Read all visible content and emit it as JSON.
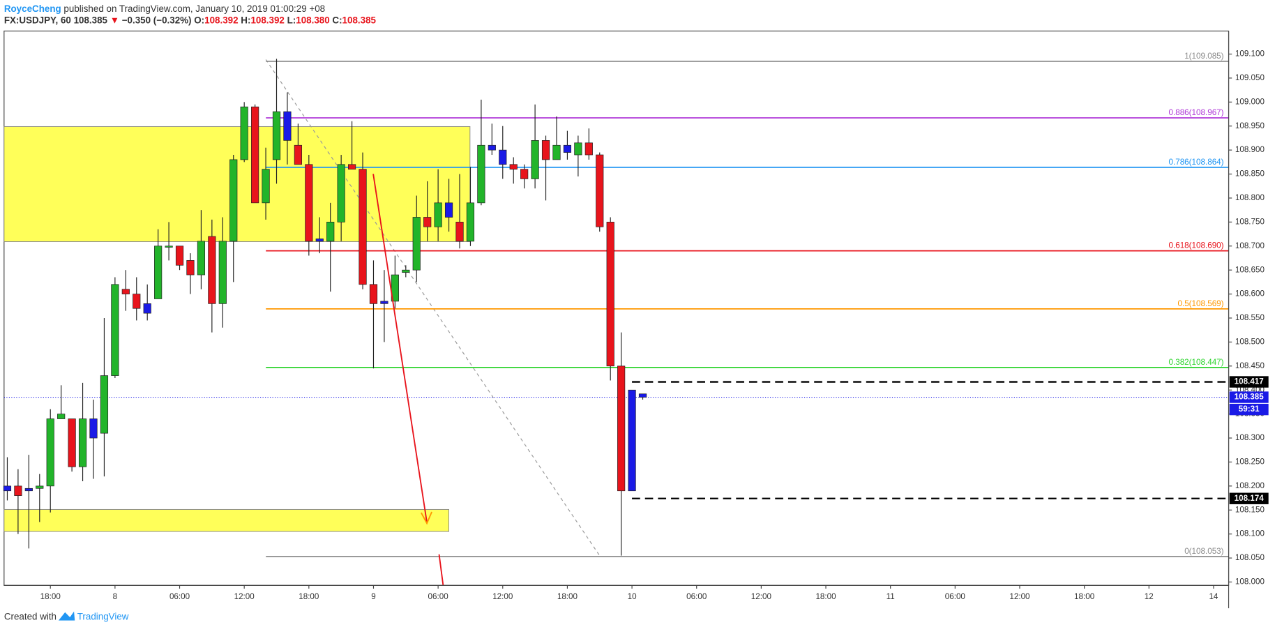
{
  "chart_data": {
    "type": "candlestick",
    "header": {
      "author": "RoyceCheng",
      "published": "published on TradingView.com, January 10, 2019 01:00:29 +08",
      "symbol": "FX:USDJPY, 60",
      "last": "108.385",
      "direction": "▼",
      "change": "−0.350 (−0.32%)",
      "open_label": "O:",
      "open": "108.392",
      "high_label": "H:",
      "high": "108.392",
      "low_label": "L:",
      "low": "108.380",
      "close_label": "C:",
      "close": "108.385"
    },
    "footer": {
      "text": "Created with",
      "brand": "TradingView"
    },
    "x": [
      14,
      15,
      16,
      17,
      18,
      19,
      20,
      21,
      22,
      23,
      24,
      25,
      26,
      27,
      28,
      29,
      30,
      31,
      32,
      33,
      34,
      35,
      36,
      37,
      38,
      39,
      40,
      41,
      42,
      43,
      44,
      45,
      46,
      47,
      48,
      49,
      50,
      51,
      52,
      53,
      54,
      55,
      56,
      57,
      58,
      59,
      60,
      61,
      62,
      63,
      64,
      65,
      66,
      67,
      68,
      69,
      70,
      71,
      72,
      73
    ],
    "open": [
      108.2,
      108.2,
      108.19,
      108.195,
      108.2,
      108.34,
      108.34,
      108.24,
      108.34,
      108.31,
      108.43,
      108.61,
      108.6,
      108.58,
      108.59,
      108.7,
      108.7,
      108.67,
      108.64,
      108.72,
      108.58,
      108.71,
      108.88,
      108.99,
      108.79,
      108.88,
      108.98,
      108.91,
      108.87,
      108.715,
      108.71,
      108.75,
      108.87,
      108.86,
      108.62,
      108.58,
      108.585,
      108.645,
      108.65,
      108.76,
      108.74,
      108.79,
      108.75,
      108.71,
      108.79,
      108.91,
      108.9,
      108.87,
      108.86,
      108.84,
      108.92,
      108.88,
      108.91,
      108.89,
      108.915,
      108.89,
      108.75,
      108.45,
      108.19,
      108.392
    ],
    "high": [
      108.26,
      108.235,
      108.265,
      108.225,
      108.36,
      108.41,
      108.34,
      108.415,
      108.38,
      108.55,
      108.635,
      108.65,
      108.635,
      108.62,
      108.735,
      108.75,
      108.7,
      108.685,
      108.775,
      108.755,
      108.76,
      108.89,
      109.0,
      108.995,
      108.905,
      109.09,
      109.02,
      108.955,
      108.89,
      108.76,
      108.79,
      108.89,
      108.96,
      108.895,
      108.67,
      108.65,
      108.68,
      108.66,
      108.805,
      108.835,
      108.86,
      108.84,
      108.85,
      108.865,
      109.005,
      108.955,
      108.95,
      108.885,
      108.87,
      108.995,
      108.93,
      108.97,
      108.94,
      108.93,
      108.945,
      108.895,
      108.76,
      108.52,
      108.4,
      108.392
    ],
    "low": [
      108.17,
      108.1,
      108.07,
      108.125,
      108.145,
      108.34,
      108.23,
      108.21,
      108.215,
      108.22,
      108.425,
      108.565,
      108.545,
      108.545,
      108.59,
      108.67,
      108.65,
      108.6,
      108.61,
      108.52,
      108.53,
      108.625,
      108.875,
      108.79,
      108.755,
      108.83,
      108.87,
      108.87,
      108.68,
      108.685,
      108.605,
      108.71,
      108.86,
      108.61,
      108.445,
      108.5,
      108.57,
      108.635,
      108.625,
      108.71,
      108.71,
      108.73,
      108.695,
      108.7,
      108.785,
      108.89,
      108.84,
      108.83,
      108.82,
      108.82,
      108.795,
      108.88,
      108.88,
      108.845,
      108.88,
      108.73,
      108.42,
      108.055,
      108.19,
      108.38
    ],
    "close": [
      108.19,
      108.18,
      108.195,
      108.2,
      108.34,
      108.35,
      108.24,
      108.34,
      108.3,
      108.43,
      108.62,
      108.6,
      108.57,
      108.56,
      108.7,
      108.7,
      108.66,
      108.64,
      108.71,
      108.58,
      108.71,
      108.88,
      108.99,
      108.79,
      108.86,
      108.98,
      108.92,
      108.87,
      108.71,
      108.71,
      108.75,
      108.87,
      108.86,
      108.62,
      108.58,
      108.585,
      108.64,
      108.65,
      108.76,
      108.74,
      108.79,
      108.76,
      108.71,
      108.79,
      108.91,
      108.9,
      108.87,
      108.86,
      108.84,
      108.92,
      108.88,
      108.91,
      108.895,
      108.915,
      108.89,
      108.74,
      108.45,
      108.19,
      108.4,
      108.385
    ],
    "colors": [
      "#1a1ae6",
      "#e8141c",
      "#1a1ae6",
      "#22b42a",
      "#22b42a",
      "#22b42a",
      "#e8141c",
      "#22b42a",
      "#1a1ae6",
      "#22b42a",
      "#22b42a",
      "#e8141c",
      "#e8141c",
      "#1a1ae6",
      "#22b42a",
      "#22b42a",
      "#e8141c",
      "#e8141c",
      "#22b42a",
      "#e8141c",
      "#22b42a",
      "#22b42a",
      "#22b42a",
      "#e8141c",
      "#22b42a",
      "#22b42a",
      "#1a1ae6",
      "#e8141c",
      "#e8141c",
      "#1a1ae6",
      "#22b42a",
      "#22b42a",
      "#e8141c",
      "#e8141c",
      "#e8141c",
      "#1a1ae6",
      "#22b42a",
      "#22b42a",
      "#22b42a",
      "#e8141c",
      "#22b42a",
      "#1a1ae6",
      "#e8141c",
      "#22b42a",
      "#22b42a",
      "#1a1ae6",
      "#1a1ae6",
      "#e8141c",
      "#e8141c",
      "#22b42a",
      "#e8141c",
      "#22b42a",
      "#1a1ae6",
      "#22b42a",
      "#e8141c",
      "#e8141c",
      "#e8141c",
      "#e8141c",
      "#1a1ae6",
      "#1a1ae6"
    ],
    "fib_levels": [
      {
        "label": "1(109.085)",
        "value": 109.085,
        "color": "#8c8c8c"
      },
      {
        "label": "0.886(108.967)",
        "value": 108.967,
        "color": "#b03ad8"
      },
      {
        "label": "0.786(108.864)",
        "value": 108.864,
        "color": "#2196f3"
      },
      {
        "label": "0.618(108.690)",
        "value": 108.69,
        "color": "#e8141c"
      },
      {
        "label": "0.5(108.569)",
        "value": 108.569,
        "color": "#ff9800"
      },
      {
        "label": "0.382(108.447)",
        "value": 108.447,
        "color": "#2ed42e"
      },
      {
        "label": "0(108.053)",
        "value": 108.053,
        "color": "#8c8c8c"
      }
    ],
    "price_lines": [
      108.417,
      108.174
    ],
    "current_price": 108.385,
    "countdown": "59:31",
    "xlim": [
      13.7,
      127.4
    ],
    "ylim": [
      107.993,
      109.148
    ],
    "xticks": [
      {
        "value": 18,
        "label": "18:00"
      },
      {
        "value": 24,
        "label": "8"
      },
      {
        "value": 30,
        "label": "06:00"
      },
      {
        "value": 36,
        "label": "12:00"
      },
      {
        "value": 42,
        "label": "18:00"
      },
      {
        "value": 48,
        "label": "9"
      },
      {
        "value": 54,
        "label": "06:00"
      },
      {
        "value": 60,
        "label": "12:00"
      },
      {
        "value": 66,
        "label": "18:00"
      },
      {
        "value": 72,
        "label": "10"
      },
      {
        "value": 78,
        "label": "06:00"
      },
      {
        "value": 84,
        "label": "12:00"
      },
      {
        "value": 90,
        "label": "18:00"
      },
      {
        "value": 96,
        "label": "11"
      },
      {
        "value": 102,
        "label": "06:00"
      },
      {
        "value": 108,
        "label": "12:00"
      },
      {
        "value": 114,
        "label": "18:00"
      },
      {
        "value": 120,
        "label": "12"
      },
      {
        "value": 126,
        "label": "14"
      }
    ],
    "yticks": [
      {
        "value": 108.0,
        "label": "108.000"
      },
      {
        "value": 108.05,
        "label": "108.050"
      },
      {
        "value": 108.1,
        "label": "108.100"
      },
      {
        "value": 108.15,
        "label": "108.150"
      },
      {
        "value": 108.2,
        "label": "108.200"
      },
      {
        "value": 108.25,
        "label": "108.250"
      },
      {
        "value": 108.3,
        "label": "108.300"
      },
      {
        "value": 108.35,
        "label": "108.350"
      },
      {
        "value": 108.4,
        "label": "108.400"
      },
      {
        "value": 108.45,
        "label": "108.450"
      },
      {
        "value": 108.5,
        "label": "108.500"
      },
      {
        "value": 108.55,
        "label": "108.550"
      },
      {
        "value": 108.6,
        "label": "108.600"
      },
      {
        "value": 108.65,
        "label": "108.650"
      },
      {
        "value": 108.7,
        "label": "108.700"
      },
      {
        "value": 108.75,
        "label": "108.750"
      },
      {
        "value": 108.8,
        "label": "108.800"
      },
      {
        "value": 108.85,
        "label": "108.850"
      },
      {
        "value": 108.9,
        "label": "108.900"
      },
      {
        "value": 108.95,
        "label": "108.950"
      },
      {
        "value": 109.0,
        "label": "109.000"
      },
      {
        "value": 109.05,
        "label": "109.050"
      },
      {
        "value": 109.1,
        "label": "109.100"
      }
    ]
  }
}
